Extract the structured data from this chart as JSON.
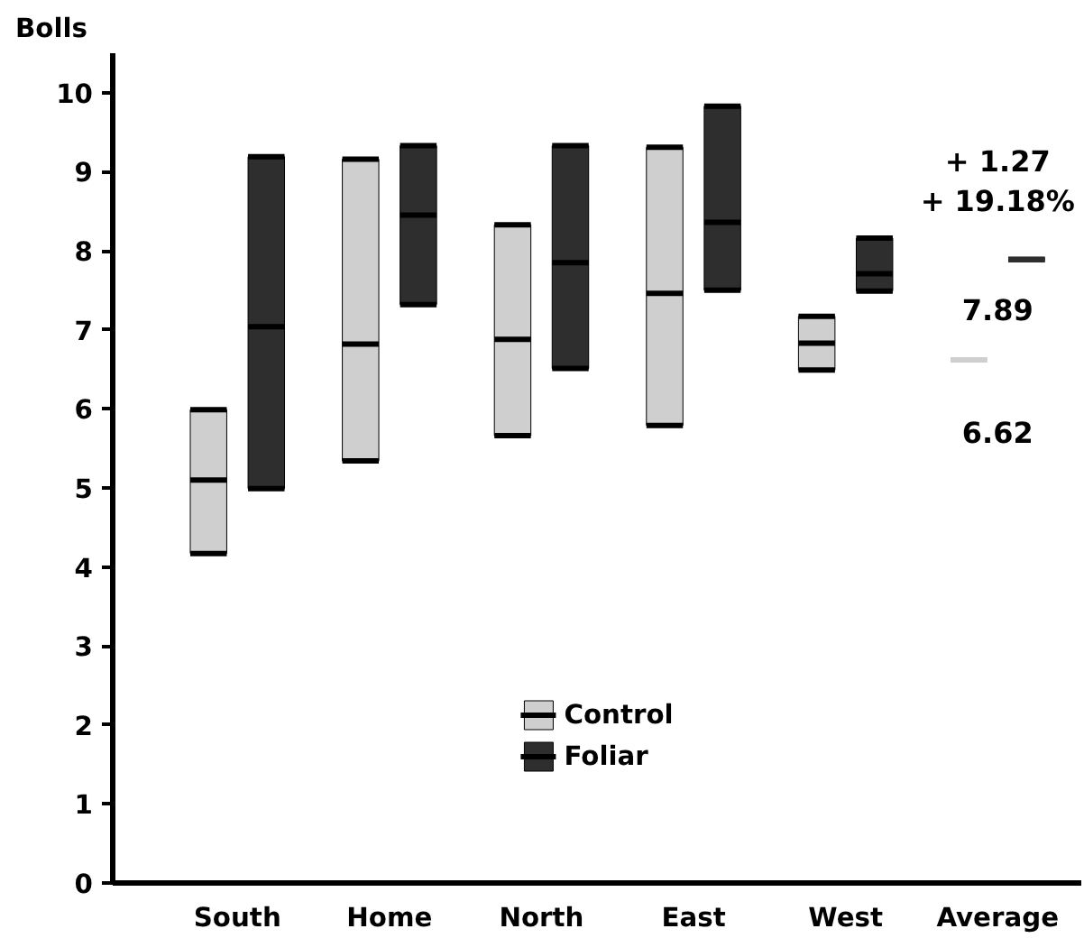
{
  "chart_data": {
    "type": "box",
    "ylabel": "Bolls",
    "categories": [
      "South",
      "Home",
      "North",
      "East",
      "West",
      "Average"
    ],
    "ylim": [
      0,
      10.5
    ],
    "yticks": [
      0,
      1,
      2,
      3,
      4,
      5,
      6,
      7,
      8,
      9,
      10
    ],
    "grid": false,
    "legend": "bottom",
    "series": [
      {
        "name": "Control",
        "color": "#cfcfcf",
        "boxes": [
          {
            "low": 4.17,
            "q1": 4.17,
            "median": 5.1,
            "q3": 5.99,
            "high": 5.99
          },
          {
            "low": 5.34,
            "q1": 5.34,
            "median": 6.82,
            "q3": 9.16,
            "high": 9.16
          },
          {
            "low": 5.66,
            "q1": 5.66,
            "median": 6.88,
            "q3": 8.33,
            "high": 8.33
          },
          {
            "low": 5.79,
            "q1": 5.79,
            "median": 7.46,
            "q3": 9.31,
            "high": 9.31
          },
          {
            "low": 6.49,
            "q1": 6.49,
            "median": 6.83,
            "q3": 7.17,
            "high": 7.17
          },
          {
            "low": 6.62,
            "q1": 6.62,
            "median": 6.62,
            "q3": 6.62,
            "high": 6.62
          }
        ]
      },
      {
        "name": "Foliar",
        "color": "#2e2e2e",
        "boxes": [
          {
            "low": 4.99,
            "q1": 4.99,
            "median": 7.04,
            "q3": 9.19,
            "high": 9.19
          },
          {
            "low": 7.32,
            "q1": 7.32,
            "median": 8.45,
            "q3": 9.33,
            "high": 9.33
          },
          {
            "low": 6.51,
            "q1": 6.51,
            "median": 7.85,
            "q3": 9.33,
            "high": 9.33
          },
          {
            "low": 7.5,
            "q1": 7.5,
            "median": 8.36,
            "q3": 9.83,
            "high": 9.83
          },
          {
            "low": 7.49,
            "q1": 7.49,
            "median": 7.71,
            "q3": 8.16,
            "high": 8.16
          },
          {
            "low": 7.89,
            "q1": 7.89,
            "median": 7.89,
            "q3": 7.89,
            "high": 7.89
          }
        ]
      }
    ],
    "annotations": [
      "+ 1.27",
      "+ 19.18%",
      "7.89",
      "6.62"
    ]
  }
}
